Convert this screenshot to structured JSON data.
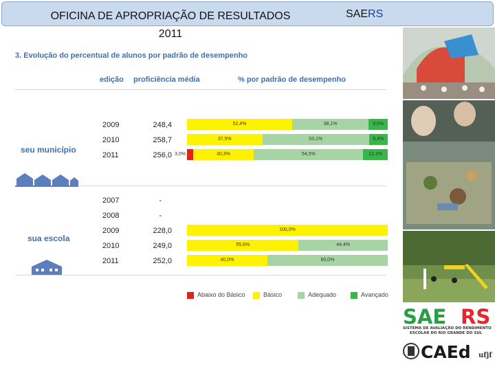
{
  "header": {
    "title_line1": "OFICINA DE APROPRIAÇÃO DE RESULTADOS",
    "title_line2": "2011",
    "brand_prefix": "SAE",
    "brand_suffix": "RS"
  },
  "section_title": "3. Evolução do percentual de alunos por padrão de desempenho",
  "columns": {
    "edition": "edição",
    "proficiency": "proficiência média",
    "percent": "% por padrão de desempenho"
  },
  "municipio": {
    "label": "seu município",
    "rows": [
      {
        "year": "2009",
        "prof": "248,4",
        "segments": [
          {
            "level": "basico",
            "value": 52.4,
            "label": "52,4%"
          },
          {
            "level": "adequado",
            "value": 38.1,
            "label": "38,1%"
          },
          {
            "level": "avancado",
            "value": 9.5,
            "label": "9,5%"
          }
        ]
      },
      {
        "year": "2010",
        "prof": "258,7",
        "segments": [
          {
            "level": "basico",
            "value": 37.5,
            "label": "37,5%"
          },
          {
            "level": "adequado",
            "value": 53.1,
            "label": "53,1%"
          },
          {
            "level": "avancado",
            "value": 9.4,
            "label": "9,4%"
          }
        ]
      },
      {
        "year": "2011",
        "prof": "256,0",
        "segments": [
          {
            "level": "abaixo",
            "value": 3.0,
            "label": "3,0%"
          },
          {
            "level": "basico",
            "value": 30.3,
            "label": "30,3%"
          },
          {
            "level": "adequado",
            "value": 54.5,
            "label": "54,5%"
          },
          {
            "level": "avancado",
            "value": 12.1,
            "label": "12,1%"
          }
        ]
      }
    ]
  },
  "escola": {
    "label": "sua escola",
    "rows": [
      {
        "year": "2007",
        "prof": "-",
        "segments": []
      },
      {
        "year": "2008",
        "prof": "-",
        "segments": []
      },
      {
        "year": "2009",
        "prof": "228,0",
        "segments": [
          {
            "level": "basico",
            "value": 100.0,
            "label": "100,0%"
          }
        ]
      },
      {
        "year": "2010",
        "prof": "249,0",
        "segments": [
          {
            "level": "basico",
            "value": 55.6,
            "label": "55,6%"
          },
          {
            "level": "adequado",
            "value": 44.4,
            "label": "44,4%"
          }
        ]
      },
      {
        "year": "2011",
        "prof": "252,0",
        "segments": [
          {
            "level": "basico",
            "value": 40.0,
            "label": "40,0%"
          },
          {
            "level": "adequado",
            "value": 60.0,
            "label": "60,0%"
          }
        ]
      }
    ]
  },
  "legend": [
    {
      "level": "abaixo",
      "label": "Abaixo do Básico",
      "color": "#e2231a"
    },
    {
      "level": "basico",
      "label": "Básico",
      "color": "#fff200"
    },
    {
      "level": "adequado",
      "label": "Adequado",
      "color": "#a6d4a4"
    },
    {
      "level": "avancado",
      "label": "Avançado",
      "color": "#39b54a"
    }
  ],
  "logos": {
    "saers_prefix": "SAE",
    "saers_suffix": "RS",
    "saers_line1": "SISTEMA DE AVALIAÇÃO DO RENDIMENTO",
    "saers_line2": "ESCOLAR DO RIO GRANDE DO SUL",
    "caed": "CAEd",
    "ufjf": "ufjf"
  }
}
